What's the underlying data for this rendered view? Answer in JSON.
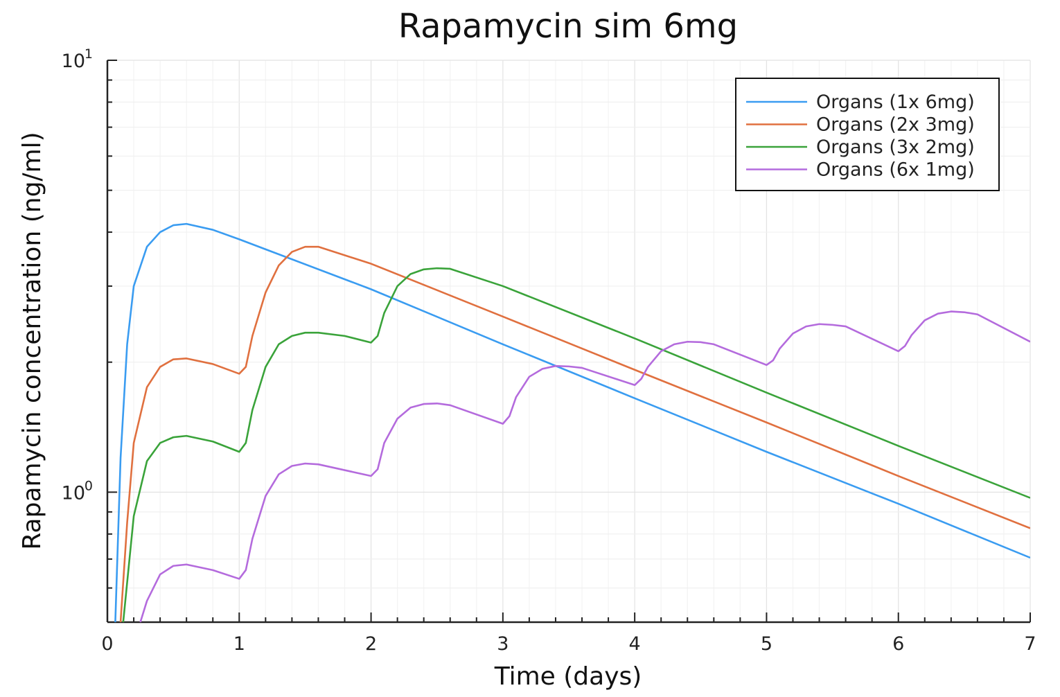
{
  "chart_data": {
    "type": "line",
    "title": "Rapamycin sim 6mg",
    "xlabel": "Time (days)",
    "ylabel": "Rapamycin concentration (ng/ml)",
    "xlim": [
      0,
      7
    ],
    "ylim": [
      0.5,
      10
    ],
    "yscale": "log10",
    "grid": true,
    "legend_position": "top-right",
    "x_ticks": [
      0,
      1,
      2,
      3,
      4,
      5,
      6,
      7
    ],
    "x_tick_labels": [
      "0",
      "1",
      "2",
      "3",
      "4",
      "5",
      "6",
      "7"
    ],
    "y_ticks": [
      {
        "value": 1,
        "base": "10",
        "exp": "0"
      },
      {
        "value": 10,
        "base": "10",
        "exp": "1"
      }
    ],
    "series": [
      {
        "name": "Organs (1x 6mg)",
        "color": "#3a9cf1",
        "points": [
          [
            0.06,
            0.5
          ],
          [
            0.1,
            1.2
          ],
          [
            0.15,
            2.2
          ],
          [
            0.2,
            3.0
          ],
          [
            0.3,
            3.7
          ],
          [
            0.4,
            4.0
          ],
          [
            0.5,
            4.15
          ],
          [
            0.6,
            4.18
          ],
          [
            0.8,
            4.05
          ],
          [
            1,
            3.85
          ],
          [
            2,
            2.95
          ],
          [
            3,
            2.2
          ],
          [
            4,
            1.65
          ],
          [
            5,
            1.24
          ],
          [
            6,
            0.94
          ],
          [
            7,
            0.705
          ]
        ]
      },
      {
        "name": "Organs (2x 3mg)",
        "color": "#e0703f",
        "points": [
          [
            0.1,
            0.5
          ],
          [
            0.15,
            0.85
          ],
          [
            0.2,
            1.3
          ],
          [
            0.3,
            1.75
          ],
          [
            0.4,
            1.95
          ],
          [
            0.5,
            2.03
          ],
          [
            0.6,
            2.04
          ],
          [
            0.8,
            1.98
          ],
          [
            1,
            1.88
          ],
          [
            1.05,
            1.95
          ],
          [
            1.1,
            2.3
          ],
          [
            1.2,
            2.9
          ],
          [
            1.3,
            3.35
          ],
          [
            1.4,
            3.6
          ],
          [
            1.5,
            3.7
          ],
          [
            1.6,
            3.7
          ],
          [
            2,
            3.38
          ],
          [
            3,
            2.55
          ],
          [
            4,
            1.92
          ],
          [
            5,
            1.45
          ],
          [
            6,
            1.09
          ],
          [
            7,
            0.825
          ]
        ]
      },
      {
        "name": "Organs (3x 2mg)",
        "color": "#3aa33a",
        "points": [
          [
            0.12,
            0.5
          ],
          [
            0.2,
            0.88
          ],
          [
            0.3,
            1.18
          ],
          [
            0.4,
            1.3
          ],
          [
            0.5,
            1.34
          ],
          [
            0.6,
            1.35
          ],
          [
            0.8,
            1.31
          ],
          [
            1,
            1.24
          ],
          [
            1.05,
            1.3
          ],
          [
            1.1,
            1.55
          ],
          [
            1.2,
            1.95
          ],
          [
            1.3,
            2.2
          ],
          [
            1.4,
            2.3
          ],
          [
            1.5,
            2.34
          ],
          [
            1.6,
            2.34
          ],
          [
            1.8,
            2.3
          ],
          [
            2,
            2.22
          ],
          [
            2.05,
            2.3
          ],
          [
            2.1,
            2.6
          ],
          [
            2.2,
            3.0
          ],
          [
            2.3,
            3.2
          ],
          [
            2.4,
            3.28
          ],
          [
            2.5,
            3.3
          ],
          [
            2.6,
            3.29
          ],
          [
            3,
            3.0
          ],
          [
            4,
            2.27
          ],
          [
            5,
            1.7
          ],
          [
            6,
            1.28
          ],
          [
            7,
            0.97
          ]
        ]
      },
      {
        "name": "Organs (6x 1mg)",
        "color": "#b46bdd",
        "points": [
          [
            0.25,
            0.5
          ],
          [
            0.3,
            0.56
          ],
          [
            0.4,
            0.645
          ],
          [
            0.5,
            0.675
          ],
          [
            0.6,
            0.68
          ],
          [
            0.8,
            0.66
          ],
          [
            1,
            0.63
          ],
          [
            1.05,
            0.66
          ],
          [
            1.1,
            0.78
          ],
          [
            1.2,
            0.98
          ],
          [
            1.3,
            1.1
          ],
          [
            1.4,
            1.15
          ],
          [
            1.5,
            1.165
          ],
          [
            1.6,
            1.16
          ],
          [
            2,
            1.09
          ],
          [
            2.05,
            1.13
          ],
          [
            2.1,
            1.3
          ],
          [
            2.2,
            1.48
          ],
          [
            2.3,
            1.57
          ],
          [
            2.4,
            1.6
          ],
          [
            2.5,
            1.605
          ],
          [
            2.6,
            1.59
          ],
          [
            3,
            1.44
          ],
          [
            3.05,
            1.5
          ],
          [
            3.1,
            1.66
          ],
          [
            3.2,
            1.85
          ],
          [
            3.3,
            1.93
          ],
          [
            3.4,
            1.96
          ],
          [
            3.5,
            1.955
          ],
          [
            3.6,
            1.94
          ],
          [
            4,
            1.77
          ],
          [
            4.05,
            1.83
          ],
          [
            4.1,
            1.95
          ],
          [
            4.2,
            2.12
          ],
          [
            4.3,
            2.2
          ],
          [
            4.4,
            2.23
          ],
          [
            4.5,
            2.225
          ],
          [
            4.6,
            2.2
          ],
          [
            5,
            1.97
          ],
          [
            5.05,
            2.02
          ],
          [
            5.1,
            2.15
          ],
          [
            5.2,
            2.33
          ],
          [
            5.3,
            2.42
          ],
          [
            5.4,
            2.45
          ],
          [
            5.5,
            2.44
          ],
          [
            5.6,
            2.42
          ],
          [
            6,
            2.12
          ],
          [
            6.05,
            2.18
          ],
          [
            6.1,
            2.31
          ],
          [
            6.2,
            2.5
          ],
          [
            6.3,
            2.59
          ],
          [
            6.4,
            2.62
          ],
          [
            6.5,
            2.61
          ],
          [
            6.6,
            2.58
          ],
          [
            7,
            2.23
          ]
        ]
      }
    ]
  }
}
